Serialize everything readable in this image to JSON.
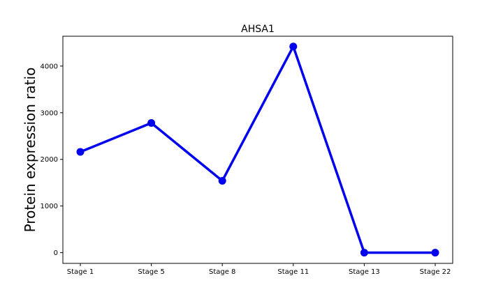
{
  "chart_data": {
    "type": "line",
    "title": "AHSA1",
    "xlabel": "",
    "ylabel": "Protein expression ratio",
    "categories": [
      "Stage 1",
      "Stage 5",
      "Stage 8",
      "Stage 11",
      "Stage 13",
      "Stage 22"
    ],
    "series": [
      {
        "values": [
          2160,
          2780,
          1540,
          4420,
          0,
          0
        ],
        "color": "#0000ee"
      }
    ],
    "yticks": [
      0,
      1000,
      2000,
      3000,
      4000
    ],
    "ylim": [
      -230,
      4640
    ],
    "grid": false,
    "legend": "none"
  }
}
